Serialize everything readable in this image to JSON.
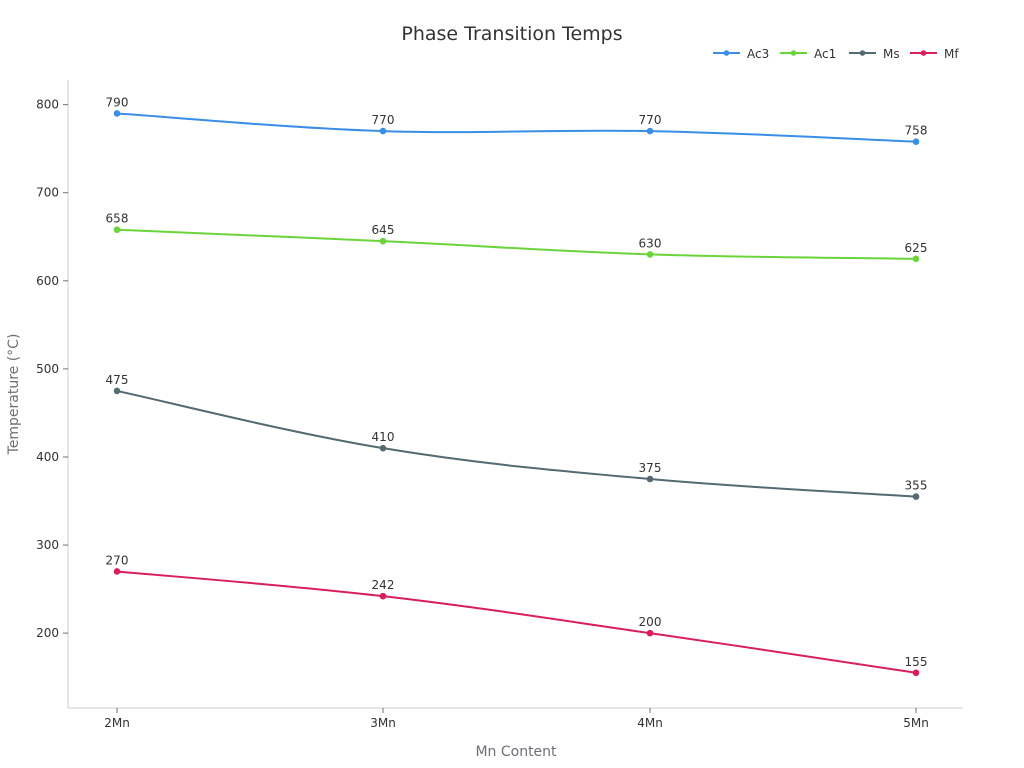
{
  "chart_data": {
    "type": "line",
    "title": "Phase Transition Temps",
    "xlabel": "Mn Content",
    "ylabel": "Temperature (°C)",
    "categories": [
      "2Mn",
      "3Mn",
      "4Mn",
      "5Mn"
    ],
    "ylim": [
      115,
      828
    ],
    "yticks": [
      200,
      300,
      400,
      500,
      600,
      700,
      800
    ],
    "grid": false,
    "legend_position": "top-right",
    "series": [
      {
        "name": "Ac3",
        "color": "#3a8ee6",
        "values": [
          790,
          770,
          770,
          758
        ]
      },
      {
        "name": "Ac1",
        "color": "#6ad53a",
        "values": [
          658,
          645,
          630,
          625
        ]
      },
      {
        "name": "Ms",
        "color": "#546a73",
        "values": [
          475,
          410,
          375,
          355
        ]
      },
      {
        "name": "Mf",
        "color": "#d81e5b",
        "values": [
          270,
          242,
          200,
          155
        ]
      }
    ]
  }
}
